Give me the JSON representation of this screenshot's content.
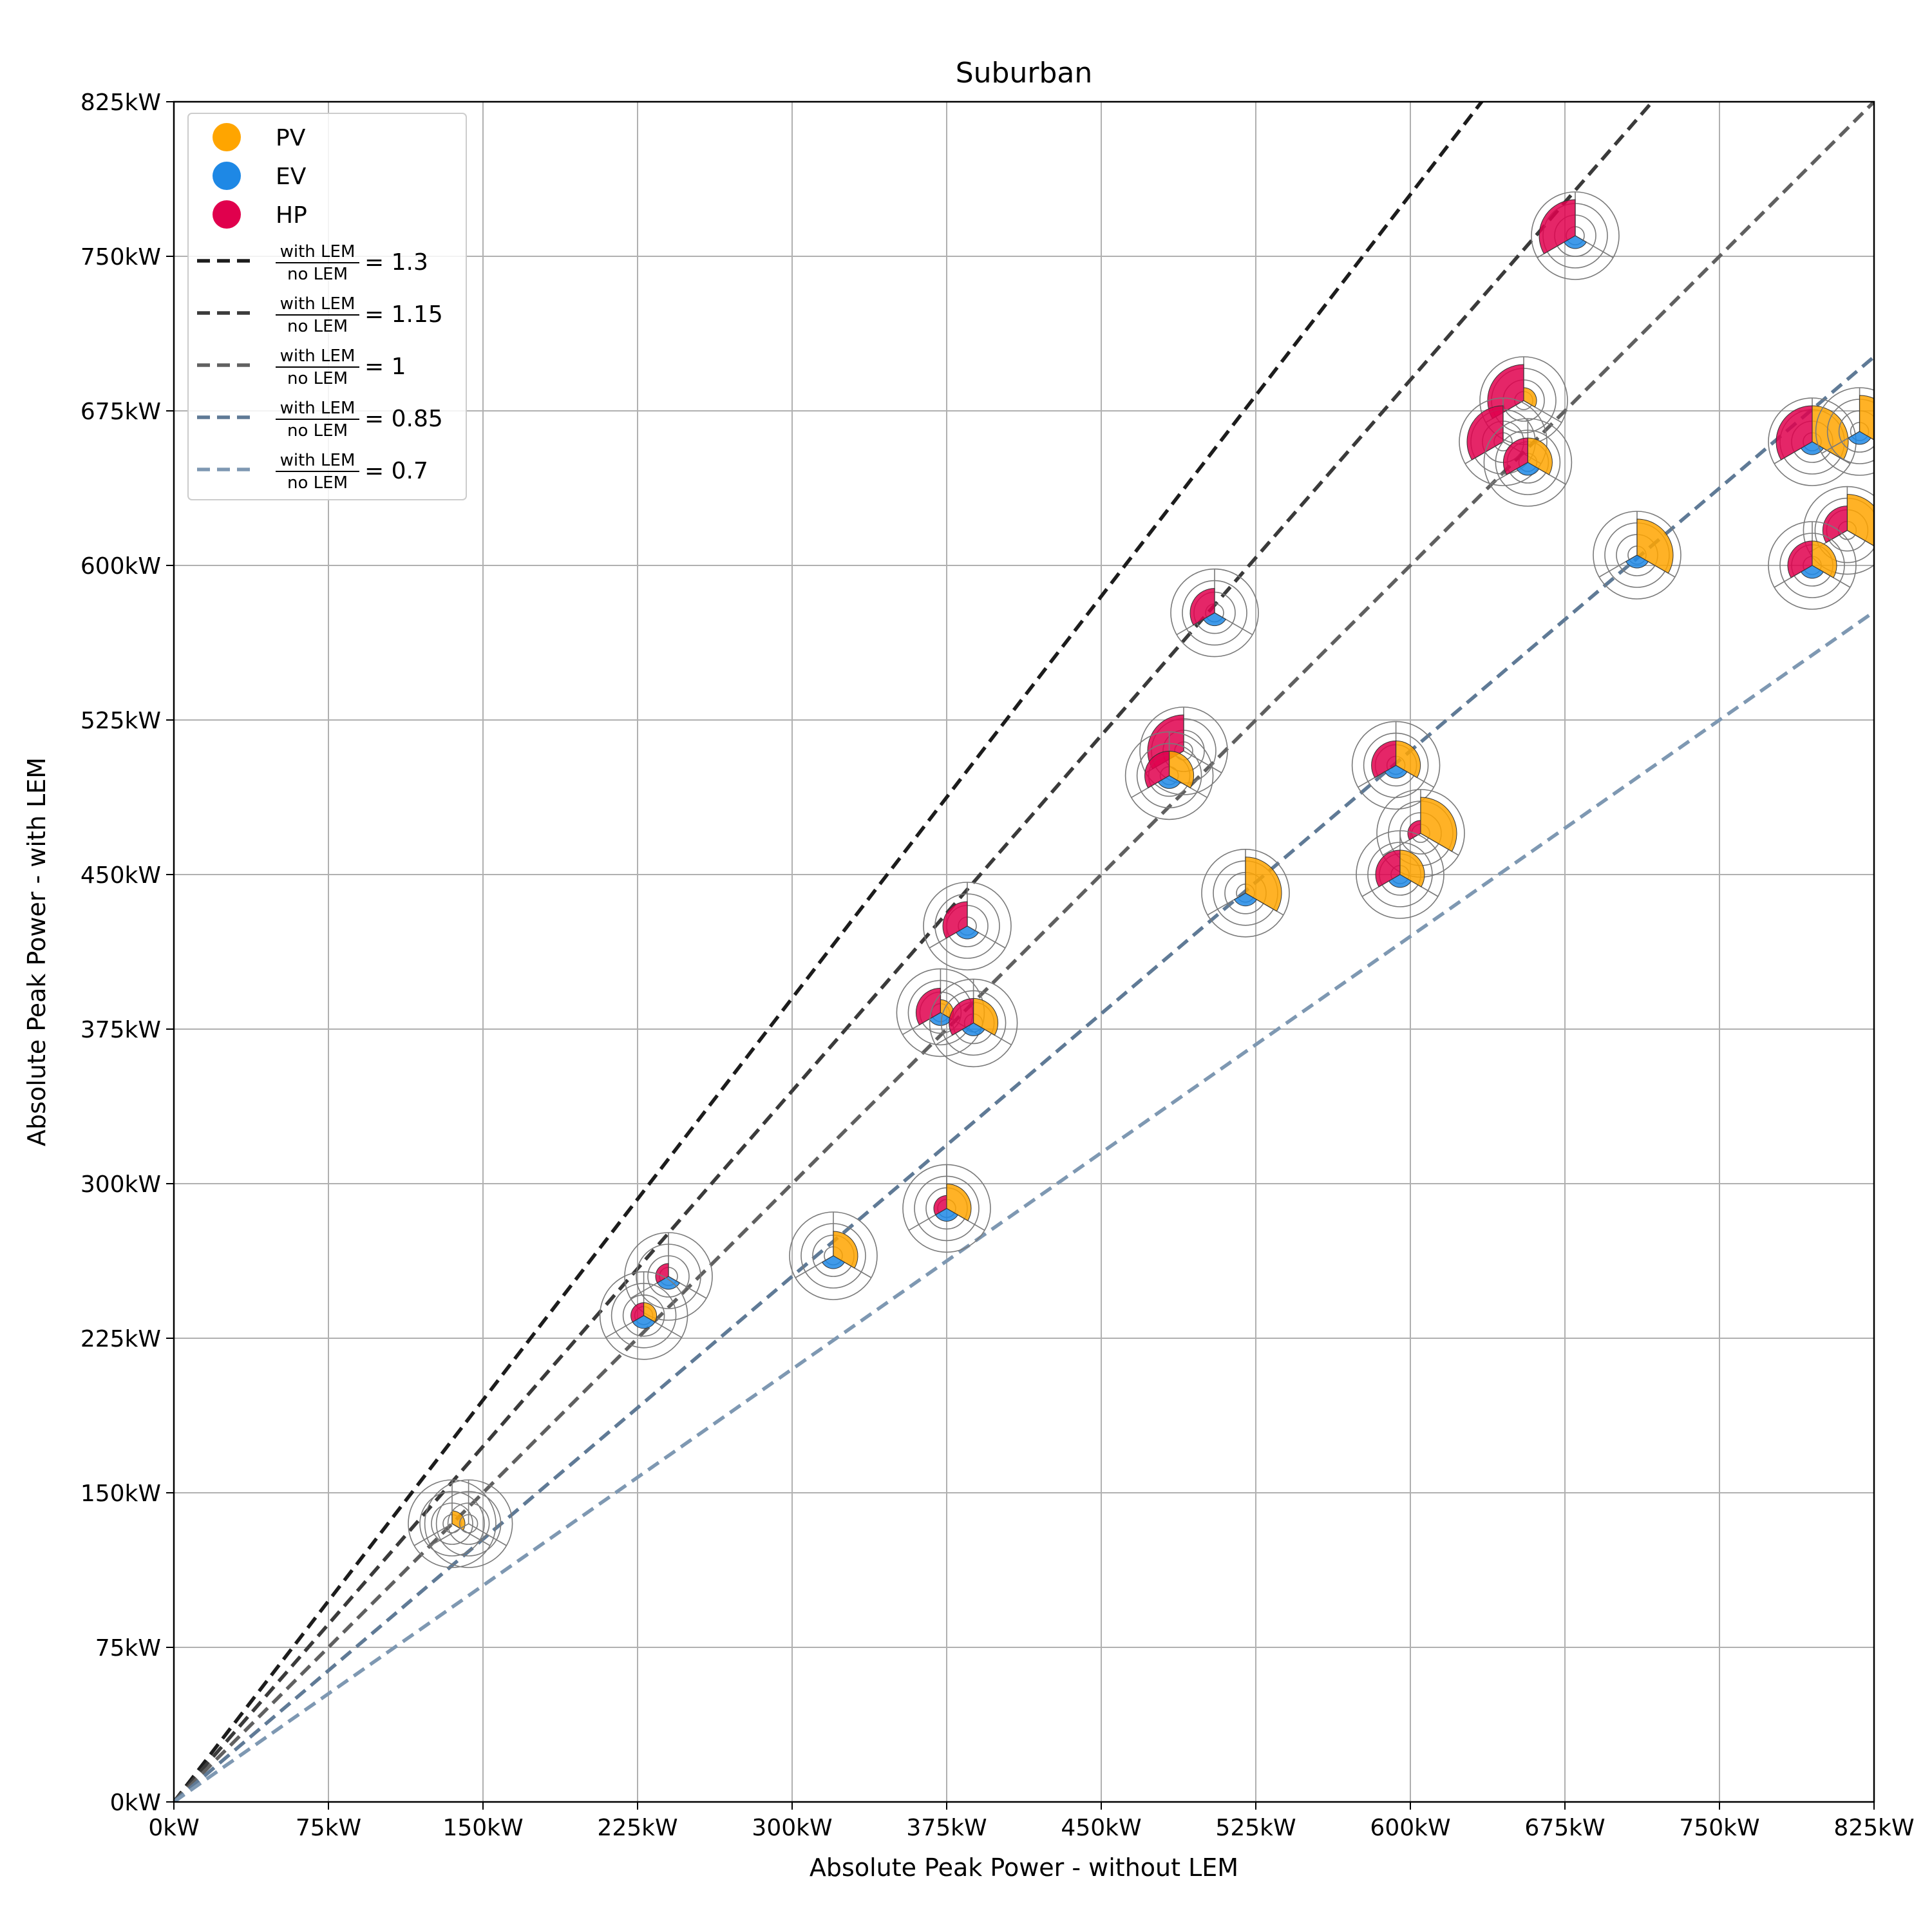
{
  "chart_data": {
    "type": "scatter",
    "title": "Suburban",
    "xlabel": "Absolute Peak Power - without LEM",
    "ylabel": "Absolute Peak Power - with LEM",
    "xlim": [
      0,
      825
    ],
    "ylim": [
      0,
      825
    ],
    "unit": "kW",
    "grid": true,
    "legend_position": "top-left",
    "xticks": [
      "0kW",
      "75kW",
      "150kW",
      "225kW",
      "300kW",
      "375kW",
      "450kW",
      "525kW",
      "600kW",
      "675kW",
      "750kW",
      "825kW"
    ],
    "yticks": [
      "0kW",
      "75kW",
      "150kW",
      "225kW",
      "300kW",
      "375kW",
      "450kW",
      "525kW",
      "600kW",
      "675kW",
      "750kW",
      "825kW"
    ],
    "category_legend": [
      {
        "label": "PV",
        "color": "#FFA500"
      },
      {
        "label": "EV",
        "color": "#1E88E5"
      },
      {
        "label": "HP",
        "color": "#E0004D"
      }
    ],
    "ratio_lines": [
      {
        "numerator": "with LEM",
        "denominator": "no LEM",
        "value": "= 1.3",
        "ratio": 1.3,
        "color": "#1c1c1c"
      },
      {
        "numerator": "with LEM",
        "denominator": "no LEM",
        "value": "= 1.15",
        "ratio": 1.15,
        "color": "#3a3a3a"
      },
      {
        "numerator": "with LEM",
        "denominator": "no LEM",
        "value": "= 1",
        "ratio": 1.0,
        "color": "#606060"
      },
      {
        "numerator": "with LEM",
        "denominator": "no LEM",
        "value": "= 0.85",
        "ratio": 0.85,
        "color": "#5f7a96"
      },
      {
        "numerator": "with LEM",
        "denominator": "no LEM",
        "value": "= 0.7",
        "ratio": 0.7,
        "color": "#7e98b2"
      }
    ],
    "points": [
      {
        "x": 680,
        "y": 760,
        "pv": 0,
        "ev": 1,
        "hp": 3
      },
      {
        "x": 655,
        "y": 680,
        "pv": 1,
        "ev": 0,
        "hp": 3
      },
      {
        "x": 645,
        "y": 660,
        "pv": 0,
        "ev": 0,
        "hp": 3
      },
      {
        "x": 657,
        "y": 650,
        "pv": 2,
        "ev": 1,
        "hp": 2
      },
      {
        "x": 795,
        "y": 660,
        "pv": 3,
        "ev": 1,
        "hp": 3
      },
      {
        "x": 818,
        "y": 665,
        "pv": 3,
        "ev": 1,
        "hp": 0
      },
      {
        "x": 710,
        "y": 605,
        "pv": 3,
        "ev": 1,
        "hp": 0
      },
      {
        "x": 812,
        "y": 617,
        "pv": 3,
        "ev": 0,
        "hp": 2
      },
      {
        "x": 795,
        "y": 600,
        "pv": 2,
        "ev": 1,
        "hp": 2
      },
      {
        "x": 505,
        "y": 577,
        "pv": 0,
        "ev": 1,
        "hp": 2
      },
      {
        "x": 490,
        "y": 510,
        "pv": 0,
        "ev": 0,
        "hp": 3
      },
      {
        "x": 483,
        "y": 498,
        "pv": 2,
        "ev": 1,
        "hp": 2
      },
      {
        "x": 593,
        "y": 503,
        "pv": 2,
        "ev": 1,
        "hp": 2
      },
      {
        "x": 605,
        "y": 470,
        "pv": 3,
        "ev": 0,
        "hp": 1
      },
      {
        "x": 595,
        "y": 450,
        "pv": 2,
        "ev": 1,
        "hp": 2
      },
      {
        "x": 520,
        "y": 441,
        "pv": 3,
        "ev": 1,
        "hp": 0
      },
      {
        "x": 385,
        "y": 425,
        "pv": 0,
        "ev": 1,
        "hp": 2
      },
      {
        "x": 372,
        "y": 383,
        "pv": 1,
        "ev": 1,
        "hp": 2
      },
      {
        "x": 388,
        "y": 378,
        "pv": 2,
        "ev": 1,
        "hp": 2
      },
      {
        "x": 375,
        "y": 288,
        "pv": 2,
        "ev": 1,
        "hp": 1
      },
      {
        "x": 320,
        "y": 265,
        "pv": 2,
        "ev": 1,
        "hp": 0
      },
      {
        "x": 240,
        "y": 255,
        "pv": 0,
        "ev": 1,
        "hp": 1
      },
      {
        "x": 228,
        "y": 236,
        "pv": 1,
        "ev": 1,
        "hp": 1
      },
      {
        "x": 135,
        "y": 135,
        "pv": 1,
        "ev": 0,
        "hp": 0
      },
      {
        "x": 143,
        "y": 135,
        "pv": 0,
        "ev": 0,
        "hp": 0
      }
    ]
  }
}
